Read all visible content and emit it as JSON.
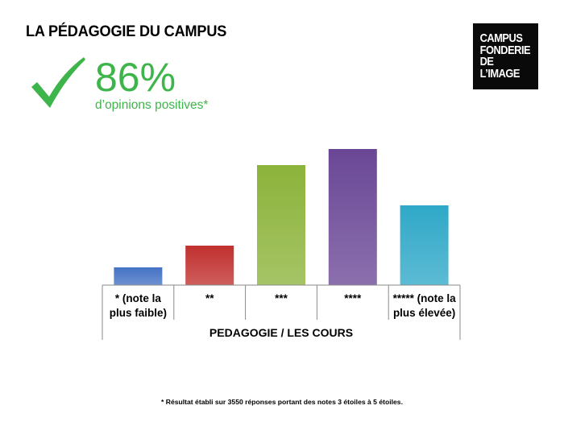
{
  "page": {
    "title": "LA PÉDAGOGIE DU CAMPUS",
    "logo_lines": [
      "CAMPUS",
      "FONDERIE",
      "DE",
      "L’IMAGE"
    ],
    "logo_background": "#0a0a0a",
    "kpi_value": "86%",
    "kpi_caption": "d’opinions positives*",
    "kpi_color": "#3db54a",
    "check_icon": "checkmark-icon",
    "footnote": "* Résultat établi sur 3550 réponses portant des notes 3 étoiles à 5 étoiles."
  },
  "chart_data": {
    "type": "bar",
    "xlabel": "PEDAGOGIE / LES COURS",
    "ylabel": "",
    "categories": [
      [
        "* (note la",
        "plus faible)"
      ],
      [
        "**"
      ],
      [
        "***"
      ],
      [
        "****"
      ],
      [
        "***** (note la",
        "plus élevée)"
      ]
    ],
    "values": [
      22,
      49,
      149,
      169,
      99
    ],
    "ylim": [
      0,
      180
    ],
    "grid": false,
    "legend": "none",
    "colors": [
      "#4472c4",
      "#c0302e",
      "#8cb33a",
      "#6a4796",
      "#2fa8c8"
    ]
  }
}
